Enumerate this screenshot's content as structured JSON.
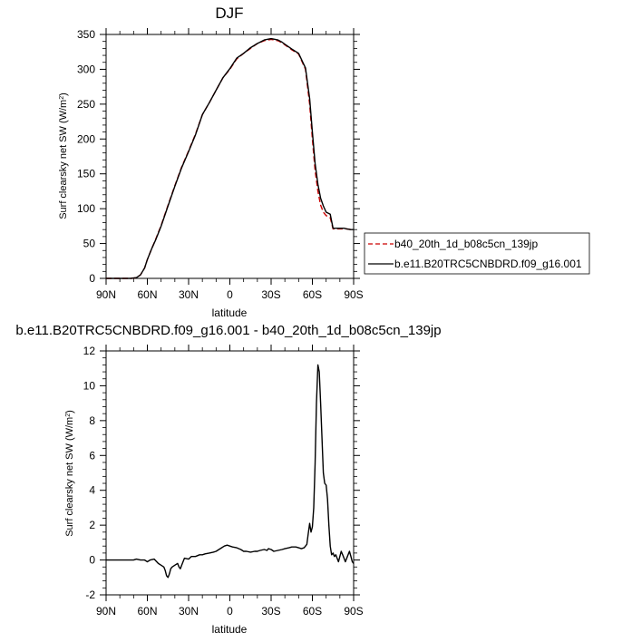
{
  "chart_data": [
    {
      "type": "line",
      "title": "DJF",
      "xlabel": "latitude",
      "ylabel": "Surf clearsky net SW (W/m",
      "ylabel_sup": "2",
      "ylabel_close": ")",
      "xlim": [
        90,
        -90
      ],
      "ylim": [
        0,
        350
      ],
      "x_ticks": [
        90,
        60,
        30,
        0,
        -30,
        -60,
        -90
      ],
      "x_tick_labels": [
        "90N",
        "60N",
        "30N",
        "0",
        "30S",
        "60S",
        "90S"
      ],
      "y_ticks": [
        0,
        50,
        100,
        150,
        200,
        250,
        300,
        350
      ],
      "y_tick_labels": [
        "0",
        "50",
        "100",
        "150",
        "200",
        "250",
        "300",
        "350"
      ],
      "legend_position": "right",
      "series": [
        {
          "name": "b40_20th_1d_b08c5cn_139jp",
          "color": "#cc0000",
          "dash": true,
          "x": [
            90,
            80,
            72,
            68,
            65,
            62,
            60,
            57,
            54,
            50,
            45,
            40,
            35,
            30,
            25,
            20,
            15,
            10,
            5,
            0,
            -5,
            -10,
            -15,
            -20,
            -25,
            -30,
            -35,
            -38,
            -40,
            -45,
            -50,
            -55,
            -58,
            -60,
            -62,
            -64,
            -66,
            -68,
            -70,
            -73,
            -75,
            -78,
            -80,
            -83,
            -85,
            -88,
            -90
          ],
          "y": [
            0,
            0,
            0,
            1,
            5,
            15,
            27,
            42,
            56,
            76,
            105,
            133,
            160,
            183,
            207,
            235,
            252,
            270,
            288,
            300,
            315,
            323,
            330,
            337,
            341,
            343,
            341,
            338,
            335,
            328,
            322,
            300,
            250,
            200,
            155,
            125,
            105,
            95,
            90,
            87,
            71,
            71,
            71,
            71,
            71,
            70,
            70
          ]
        },
        {
          "name": "b.e11.B20TRC5CNBDRD.f09_g16.001",
          "color": "#000000",
          "dash": false,
          "x": [
            90,
            80,
            72,
            68,
            65,
            62,
            60,
            57,
            54,
            50,
            45,
            40,
            35,
            30,
            25,
            20,
            15,
            10,
            5,
            0,
            -5,
            -10,
            -15,
            -20,
            -25,
            -30,
            -35,
            -38,
            -40,
            -45,
            -50,
            -55,
            -58,
            -60,
            -62,
            -64,
            -66,
            -68,
            -70,
            -73,
            -75,
            -78,
            -80,
            -83,
            -85,
            -88,
            -90
          ],
          "y": [
            0,
            0,
            0,
            1,
            5,
            15,
            27,
            42,
            55,
            75,
            104,
            132,
            159,
            182,
            206,
            235,
            252,
            270,
            288,
            301,
            316,
            323,
            331,
            337,
            342,
            344,
            342,
            339,
            336,
            329,
            323,
            302,
            258,
            210,
            165,
            135,
            115,
            104,
            95,
            92,
            72,
            72,
            72,
            72,
            71,
            70,
            70
          ]
        }
      ]
    },
    {
      "type": "line",
      "title": "b.e11.B20TRC5CNBDRD.f09_g16.001 - b40_20th_1d_b08c5cn_139jp",
      "xlabel": "latitude",
      "ylabel": "Surf clearsky net SW (W/m",
      "ylabel_sup": "2",
      "ylabel_close": ")",
      "xlim": [
        90,
        -90
      ],
      "ylim": [
        -2,
        12
      ],
      "x_ticks": [
        90,
        60,
        30,
        0,
        -30,
        -60,
        -90
      ],
      "x_tick_labels": [
        "90N",
        "60N",
        "30N",
        "0",
        "30S",
        "60S",
        "90S"
      ],
      "y_ticks": [
        -2,
        0,
        2,
        4,
        6,
        8,
        10,
        12
      ],
      "y_tick_labels": [
        "-2",
        "0",
        "2",
        "4",
        "6",
        "8",
        "10",
        "12"
      ],
      "series": [
        {
          "color": "#000000",
          "dash": false,
          "x": [
            90,
            75,
            70,
            68,
            65,
            62,
            60,
            58,
            55,
            52,
            50,
            48,
            47,
            46,
            45,
            44,
            43,
            42,
            40,
            38,
            37,
            36,
            35,
            33,
            30,
            28,
            25,
            22,
            20,
            18,
            15,
            12,
            10,
            8,
            6,
            4,
            2,
            0,
            -2,
            -5,
            -8,
            -10,
            -12,
            -15,
            -18,
            -20,
            -22,
            -25,
            -27,
            -28,
            -30,
            -32,
            -35,
            -38,
            -40,
            -43,
            -45,
            -48,
            -50,
            -52,
            -54,
            -56,
            -57,
            -58,
            -59,
            -60,
            -61,
            -62,
            -63,
            -64,
            -65,
            -66,
            -67,
            -68,
            -69,
            -70,
            -71,
            -72,
            -73,
            -74,
            -75,
            -76,
            -77,
            -78,
            -79,
            -80,
            -81,
            -82,
            -83,
            -84,
            -85,
            -86,
            -87,
            -88,
            -89,
            -90
          ],
          "y": [
            0,
            0,
            0,
            0.05,
            0,
            0,
            -0.1,
            0,
            0.05,
            -0.2,
            -0.3,
            -0.4,
            -0.6,
            -0.9,
            -1.0,
            -0.8,
            -0.5,
            -0.4,
            -0.3,
            -0.2,
            -0.4,
            -0.5,
            -0.3,
            0.1,
            0.05,
            0.2,
            0.2,
            0.3,
            0.3,
            0.35,
            0.4,
            0.45,
            0.5,
            0.6,
            0.7,
            0.8,
            0.85,
            0.8,
            0.75,
            0.7,
            0.6,
            0.5,
            0.5,
            0.45,
            0.5,
            0.5,
            0.55,
            0.6,
            0.55,
            0.65,
            0.6,
            0.5,
            0.55,
            0.6,
            0.65,
            0.7,
            0.75,
            0.75,
            0.7,
            0.65,
            0.7,
            0.9,
            1.5,
            2.1,
            1.6,
            1.9,
            3.0,
            5.5,
            9.0,
            11.2,
            10.8,
            9.0,
            7.0,
            5.0,
            4.4,
            4.3,
            3.5,
            2.0,
            0.8,
            0.3,
            0.4,
            0.2,
            0.3,
            0.1,
            -0.1,
            0.2,
            0.5,
            0.3,
            0.1,
            -0.1,
            0.1,
            0.3,
            0.5,
            0.2,
            -0.1,
            -0.2
          ]
        }
      ]
    }
  ]
}
